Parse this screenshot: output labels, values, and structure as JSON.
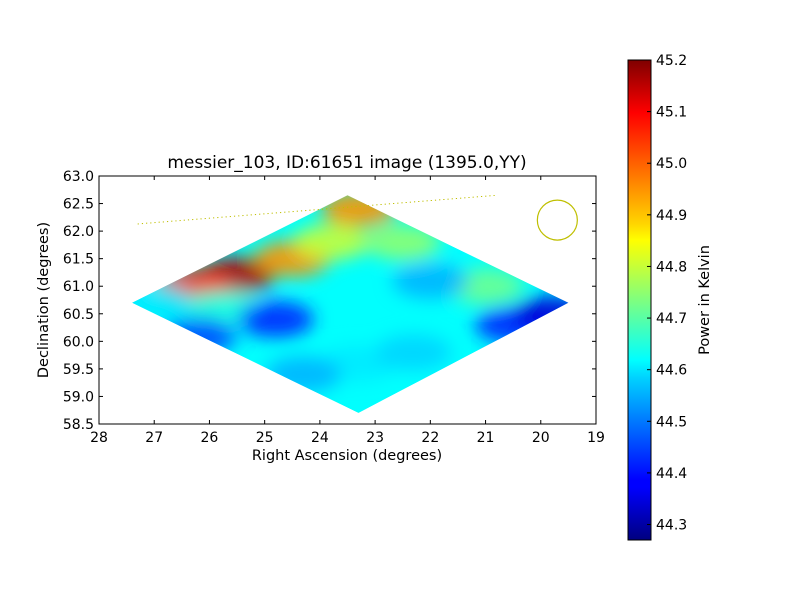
{
  "chart_data": {
    "type": "heatmap",
    "title": "messier_103, ID:61651 image (1395.0,YY)",
    "xlabel": "Right Ascension (degrees)",
    "ylabel": "Declination (degrees)",
    "xlim": [
      28,
      19
    ],
    "ylim": [
      58.5,
      63.0
    ],
    "x_ticks": [
      "28",
      "27",
      "26",
      "25",
      "24",
      "23",
      "22",
      "21",
      "20",
      "19"
    ],
    "y_ticks": [
      "58.5",
      "59.0",
      "59.5",
      "60.0",
      "60.5",
      "61.0",
      "61.5",
      "62.0",
      "62.5",
      "63.0"
    ],
    "grid": false,
    "colorbar": {
      "label": "Power in Kelvin",
      "colormap": "jet",
      "range": [
        44.27,
        45.2
      ],
      "ticks": [
        "44.3",
        "44.4",
        "44.5",
        "44.6",
        "44.7",
        "44.8",
        "44.9",
        "45.0",
        "45.1",
        "45.2"
      ]
    },
    "footprint": {
      "shape": "diamond",
      "vertices_ra_dec": [
        [
          27.4,
          60.7
        ],
        [
          23.5,
          62.65
        ],
        [
          19.5,
          60.7
        ],
        [
          23.3,
          58.7
        ]
      ],
      "center_ra_dec": [
        23.3,
        60.65
      ]
    },
    "field_values_kelvin": [
      {
        "ra": 25.5,
        "dec": 61.2,
        "value": 45.15
      },
      {
        "ra": 26.3,
        "dec": 61.0,
        "value": 45.05
      },
      {
        "ra": 24.5,
        "dec": 61.5,
        "value": 44.95
      },
      {
        "ra": 23.3,
        "dec": 62.4,
        "value": 44.95
      },
      {
        "ra": 22.5,
        "dec": 61.8,
        "value": 44.75
      },
      {
        "ra": 21.0,
        "dec": 61.0,
        "value": 44.72
      },
      {
        "ra": 23.8,
        "dec": 61.8,
        "value": 44.8
      },
      {
        "ra": 25.8,
        "dec": 60.6,
        "value": 44.65
      },
      {
        "ra": 26.2,
        "dec": 60.1,
        "value": 44.45
      },
      {
        "ra": 24.8,
        "dec": 60.4,
        "value": 44.42
      },
      {
        "ra": 22.0,
        "dec": 61.1,
        "value": 44.55
      },
      {
        "ra": 20.5,
        "dec": 60.3,
        "value": 44.42
      },
      {
        "ra": 19.8,
        "dec": 60.5,
        "value": 44.35
      },
      {
        "ra": 23.3,
        "dec": 59.6,
        "value": 44.6
      },
      {
        "ra": 24.3,
        "dec": 59.4,
        "value": 44.55
      },
      {
        "ra": 22.3,
        "dec": 59.8,
        "value": 44.58
      },
      {
        "ra": 27.0,
        "dec": 60.7,
        "value": 44.6
      }
    ],
    "annotations": {
      "beam_circle": {
        "ra": 19.7,
        "dec": 62.2,
        "color": "#bfbf00"
      },
      "dotted_line": {
        "from": [
          27.3,
          62.13
        ],
        "to": [
          20.8,
          62.65
        ],
        "color": "#bfbf00"
      }
    }
  }
}
